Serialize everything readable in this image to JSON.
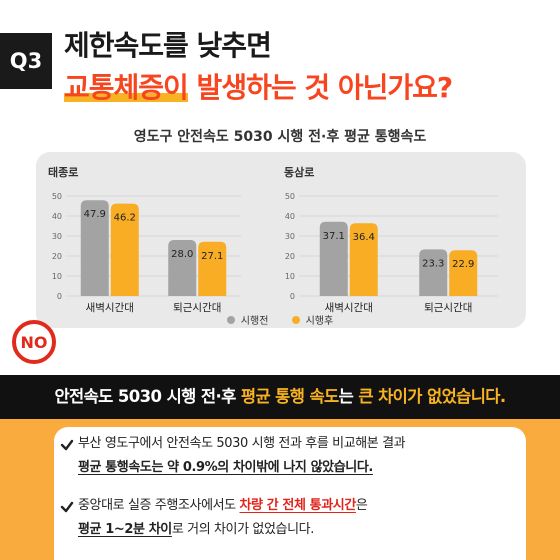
{
  "header": {
    "badge": "Q3",
    "line1": "제한속도를 낮추면",
    "line2_a": "교통체증이",
    "line2_b": " 발생하는 것 아닌가요?"
  },
  "chart_title": "영도구 안전속도 5030 시행 전·후 평균 통행속도",
  "chart_data": [
    {
      "type": "bar",
      "title": "태종로",
      "categories": [
        "새벽시간대",
        "퇴근시간대"
      ],
      "series": [
        {
          "name": "시행전",
          "values": [
            47.9,
            28.0
          ],
          "color": "#a3a3a3"
        },
        {
          "name": "시행후",
          "values": [
            46.2,
            27.1
          ],
          "color": "#f8ad24"
        }
      ],
      "ylim": [
        0,
        50
      ],
      "yticks": [
        0,
        10,
        20,
        30,
        40,
        50
      ],
      "data_labels": [
        [
          "47.9",
          "28.0"
        ],
        [
          "46.2",
          "27.1"
        ]
      ]
    },
    {
      "type": "bar",
      "title": "동삼로",
      "categories": [
        "새벽시간대",
        "퇴근시간대"
      ],
      "series": [
        {
          "name": "시행전",
          "values": [
            37.1,
            23.3
          ],
          "color": "#a3a3a3"
        },
        {
          "name": "시행후",
          "values": [
            36.4,
            22.9
          ],
          "color": "#f8ad24"
        }
      ],
      "ylim": [
        0,
        50
      ],
      "yticks": [
        0,
        10,
        20,
        30,
        40,
        50
      ],
      "data_labels": [
        [
          "37.1",
          "23.3"
        ],
        [
          "36.4",
          "22.9"
        ]
      ]
    }
  ],
  "legend": {
    "before": "시행전",
    "after": "시행후",
    "before_color": "#a3a3a3",
    "after_color": "#f8ad24"
  },
  "no_badge": "NO",
  "banner": {
    "a": "안전속도 5030 시행 전·후 ",
    "b": "평균 통행 속도",
    "c": "는 ",
    "d": "큰 차이가 없었습니다."
  },
  "p1": {
    "a": "부산 영도구에서 안전속도 5030 시행 전과 후를 비교해본 결과",
    "b": "평균 통행속도는 약 0.9%의 차이밖에 나지 않았습니다."
  },
  "p2": {
    "a": "중앙대로 실증 주행조사에서도 ",
    "b": "차량 간 전체 통과시간",
    "c": "은",
    "d": "평균 1~2분 차이",
    "e": "로 거의 차이가 없었습니다."
  },
  "colors": {
    "accent_red": "#f6451f",
    "orange": "#f8ad24",
    "dark": "#111111"
  }
}
